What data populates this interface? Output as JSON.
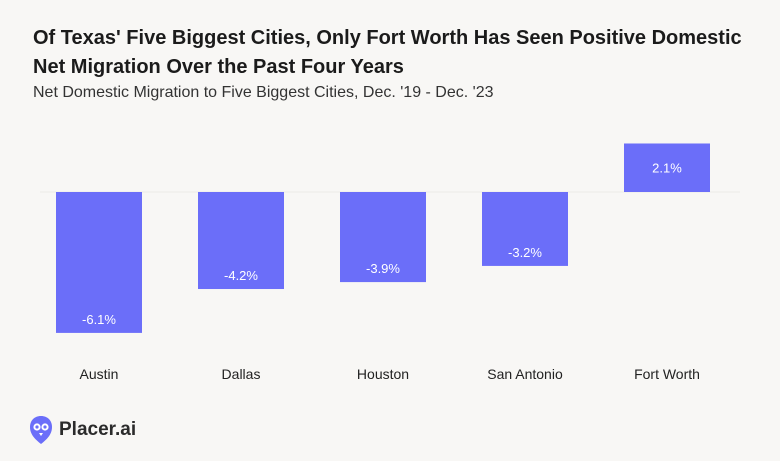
{
  "header": {
    "title": "Of Texas' Five Biggest Cities, Only Fort Worth Has Seen Positive Domestic Net Migration Over the Past Four Years",
    "subtitle": "Net Domestic Migration to Five Biggest Cities, Dec. '19 - Dec. '23"
  },
  "brand": {
    "name": "Placer.ai",
    "color": "#6b6ef9"
  },
  "chart_data": {
    "type": "bar",
    "title": "Of Texas' Five Biggest Cities, Only Fort Worth Has Seen Positive Domestic Net Migration Over the Past Four Years",
    "subtitle": "Net Domestic Migration to Five Biggest Cities, Dec. '19 - Dec. '23",
    "categories": [
      "Austin",
      "Dallas",
      "Houston",
      "San Antonio",
      "Fort Worth"
    ],
    "values": [
      -6.1,
      -4.2,
      -3.9,
      -3.2,
      2.1
    ],
    "labels": [
      "-6.1%",
      "-4.2%",
      "-3.9%",
      "-3.2%",
      "2.1%"
    ],
    "xlabel": "",
    "ylabel": "",
    "unit": "%",
    "ylim": [
      -6.1,
      2.1
    ],
    "grid": false,
    "legend": "none",
    "bar_color": "#6b6ef9"
  }
}
